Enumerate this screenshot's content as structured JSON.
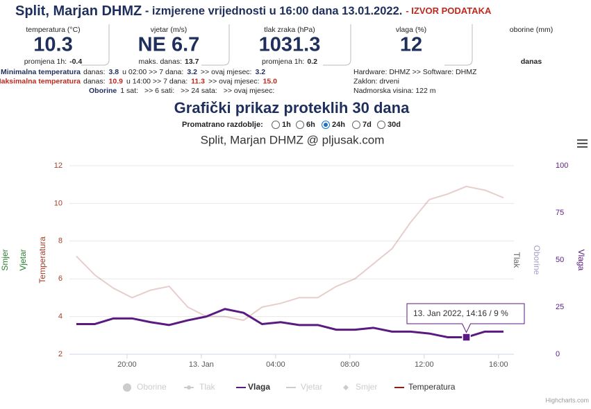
{
  "header": {
    "station": "Split, Marjan DHMZ",
    "subtitle": " - izmjerene vrijednosti u 16:00 dana 13.01.2022.",
    "source": "- IZVOR PODATAKA"
  },
  "current": [
    {
      "label": "temperatura (°C)",
      "value": "10.3",
      "note": "promjena 1h:",
      "note_value": "-0.4"
    },
    {
      "label": "vjetar (m/s)",
      "value": "NE 6.7",
      "note": "maks. danas:",
      "note_value": "13.7"
    },
    {
      "label": "tlak zraka (hPa)",
      "value": "1031.3",
      "note": "promjena 1h:",
      "note_value": "0.2"
    },
    {
      "label": "vlaga (%)",
      "value": "12"
    },
    {
      "label": "oborine (mm)",
      "note": "danas"
    }
  ],
  "extremes": [
    {
      "label": "Minimalna temperatura",
      "today": "danas:",
      "today_value": "3.8",
      "week": "u 02:00 >> 7 dana:",
      "week_value": "3.2",
      "month": ">> ovaj mjesec:",
      "month_value": "3.2"
    },
    {
      "label": "Maksimalna temperatura",
      "today": "danas:",
      "today_value": "10.9",
      "week": "u 14:00 >> 7 dana:",
      "week_value": "11.3",
      "month": ">> ovaj mjesec:",
      "month_value": "15.0"
    }
  ],
  "precipitation": {
    "label": "Oborine",
    "parts": [
      "1 sat:",
      ">> 6 sati:",
      ">> 24 sata:",
      ">> ovaj mjesec:"
    ]
  },
  "station_info": [
    "Hardware: DHMZ >> Software: DHMZ",
    "Zaklon: drveni",
    "Nadmorska visina: 122 m"
  ],
  "section_title": "Grafički prikaz proteklih 30 dana",
  "period": {
    "label": "Promatrano razdoblje:",
    "options": [
      "1h",
      "6h",
      "24h",
      "7d",
      "30d"
    ],
    "selected": 2
  },
  "chart_data": {
    "type": "line",
    "title": "Split, Marjan DHMZ @ pljusak.com",
    "x": [
      -6.73,
      -5.73,
      -4.73,
      -3.73,
      -2.73,
      -1.73,
      -0.73,
      0.27,
      1.27,
      2.27,
      3.27,
      4.27,
      5.27,
      6.27,
      7.27,
      8.27,
      9.27,
      10.27,
      11.27,
      12.27,
      13.27,
      14.27,
      15.27,
      16.27
    ],
    "xlim": [
      -7.1,
      16.83
    ],
    "xticks": [
      {
        "value": -4,
        "label": "20:00"
      },
      {
        "value": 0,
        "label": "13. Jan"
      },
      {
        "value": 4,
        "label": "04:00"
      },
      {
        "value": 8,
        "label": "08:00"
      },
      {
        "value": 12,
        "label": "12:00"
      },
      {
        "value": 16,
        "label": "16:00"
      }
    ],
    "ylim": [
      2,
      12
    ],
    "yticks": [
      2,
      4,
      6,
      8,
      10,
      12
    ],
    "ytick_color": "#a0402a",
    "y2lim": [
      0,
      100
    ],
    "y2ticks": [
      0,
      25,
      50,
      75,
      100
    ],
    "y2tick_color": "#5a1a82",
    "grid": true,
    "axis_titles_left": [
      {
        "text": "Smjer",
        "color": "#2e7d32"
      },
      {
        "text": "Vjetar",
        "color": "#2e7d32"
      },
      {
        "text": "Temperatura",
        "color": "#a0402a"
      }
    ],
    "axis_titles_right": [
      {
        "text": "Tlak",
        "color": "#666666"
      },
      {
        "text": "Oborine",
        "color": "#a9a0c8"
      },
      {
        "text": "Vlaga",
        "color": "#5a1a82"
      }
    ],
    "series": [
      {
        "name": "Oborine",
        "color": "#a9a0c8",
        "visible": false
      },
      {
        "name": "Tlak",
        "color": "#666666",
        "visible": false
      },
      {
        "name": "Vlaga",
        "color": "#5a1a82",
        "visible": true,
        "axis": "y2",
        "values": [
          16,
          16,
          19,
          19,
          17,
          15.5,
          18,
          20,
          24,
          22,
          16,
          17,
          15.5,
          15.5,
          13,
          13,
          14,
          12,
          12,
          11,
          9,
          9,
          12,
          12
        ]
      },
      {
        "name": "Vjetar",
        "color": "#2e7d32",
        "visible": false
      },
      {
        "name": "Smjer",
        "color": "#2e7d32",
        "visible": false
      },
      {
        "name": "Temperatura",
        "color": "#8b2010",
        "visible": true,
        "values": [
          7.2,
          6.2,
          5.5,
          5.0,
          5.4,
          5.6,
          4.5,
          4.0,
          4.0,
          3.8,
          4.5,
          4.7,
          5.0,
          5.0,
          5.6,
          6.0,
          6.8,
          7.6,
          9.0,
          10.2,
          10.5,
          10.9,
          10.7,
          10.3
        ]
      }
    ],
    "highlighted_series": 2,
    "tooltip": {
      "text": "13. Jan 2022, 14:16 / 9 %",
      "series": 2,
      "point": 21
    },
    "credits": "Highcharts.com"
  }
}
